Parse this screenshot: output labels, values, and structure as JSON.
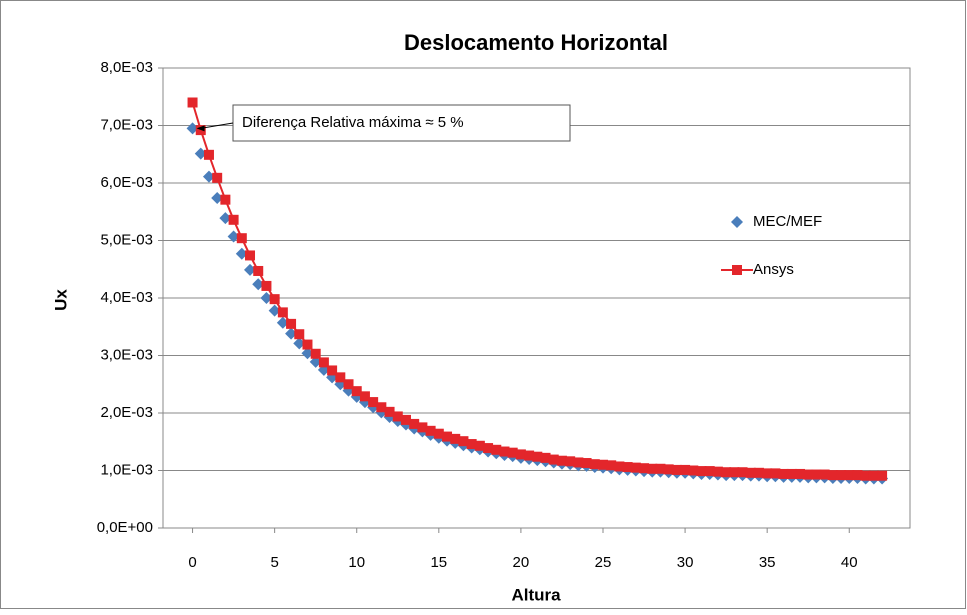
{
  "chart_data": {
    "type": "scatter",
    "title": "Deslocamento Horizontal",
    "x_label": "Altura",
    "y_label": "Ux",
    "annotation": "Diferença Relativa máxima ≈ 5 %",
    "x": [
      0,
      0.5,
      1,
      1.5,
      2,
      2.5,
      3,
      3.5,
      4,
      4.5,
      5,
      5.5,
      6,
      6.5,
      7,
      7.5,
      8,
      8.5,
      9,
      9.5,
      10,
      10.5,
      11,
      11.5,
      12,
      12.5,
      13,
      13.5,
      14,
      14.5,
      15,
      15.5,
      16,
      16.5,
      17,
      17.5,
      18,
      18.5,
      19,
      19.5,
      20,
      20.5,
      21,
      21.5,
      22,
      22.5,
      23,
      23.5,
      24,
      24.5,
      25,
      25.5,
      26,
      26.5,
      27,
      27.5,
      28,
      28.5,
      29,
      29.5,
      30,
      30.5,
      31,
      31.5,
      32,
      32.5,
      33,
      33.5,
      34,
      34.5,
      35,
      35.5,
      36,
      36.5,
      37,
      37.5,
      38,
      38.5,
      39,
      39.5,
      40,
      40.5,
      41,
      41.5,
      42
    ],
    "series": [
      {
        "name": "MEC/MEF",
        "color": "#4a7ebb",
        "marker": "diamond",
        "line": false,
        "values": [
          0.00695,
          0.00651,
          0.00611,
          0.00574,
          0.00539,
          0.00507,
          0.00477,
          0.00449,
          0.00424,
          0.004,
          0.00378,
          0.00357,
          0.00338,
          0.00321,
          0.00304,
          0.00289,
          0.00275,
          0.00262,
          0.0025,
          0.00239,
          0.00228,
          0.00219,
          0.0021,
          0.00201,
          0.00193,
          0.00186,
          0.0018,
          0.00173,
          0.00168,
          0.00162,
          0.00157,
          0.00152,
          0.00148,
          0.00144,
          0.0014,
          0.00137,
          0.00133,
          0.0013,
          0.00127,
          0.00125,
          0.00122,
          0.0012,
          0.00118,
          0.00116,
          0.00114,
          0.00112,
          0.00111,
          0.00109,
          0.00108,
          0.00106,
          0.00105,
          0.00104,
          0.00102,
          0.00101,
          0.001,
          0.00099,
          0.00098,
          0.00098,
          0.00097,
          0.00096,
          0.00096,
          0.00095,
          0.00094,
          0.00094,
          0.00093,
          0.00092,
          0.00092,
          0.00092,
          0.00091,
          0.00091,
          0.0009,
          0.0009,
          0.00089,
          0.00089,
          0.00089,
          0.00088,
          0.00088,
          0.00088,
          0.00087,
          0.00087,
          0.00087,
          0.00087,
          0.00086,
          0.00086,
          0.00086
        ]
      },
      {
        "name": "Ansys",
        "color": "#e3262b",
        "marker": "square",
        "line": true,
        "values": [
          0.0074,
          0.00692,
          0.00649,
          0.00609,
          0.00571,
          0.00536,
          0.00504,
          0.00474,
          0.00447,
          0.00421,
          0.00398,
          0.00375,
          0.00355,
          0.00337,
          0.00319,
          0.00303,
          0.00288,
          0.00274,
          0.00262,
          0.0025,
          0.00238,
          0.00229,
          0.00219,
          0.0021,
          0.00202,
          0.00194,
          0.00188,
          0.00181,
          0.00175,
          0.00169,
          0.00164,
          0.00159,
          0.00155,
          0.00151,
          0.00146,
          0.00143,
          0.00139,
          0.00136,
          0.00133,
          0.00131,
          0.00128,
          0.00126,
          0.00124,
          0.00122,
          0.00119,
          0.00117,
          0.00116,
          0.00114,
          0.00113,
          0.00111,
          0.0011,
          0.00109,
          0.00107,
          0.00106,
          0.00105,
          0.00104,
          0.00103,
          0.00103,
          0.00102,
          0.00101,
          0.00101,
          0.001,
          0.00099,
          0.00099,
          0.00098,
          0.00097,
          0.00097,
          0.00097,
          0.00096,
          0.00096,
          0.00095,
          0.00095,
          0.00094,
          0.00094,
          0.00094,
          0.00093,
          0.00093,
          0.00093,
          0.00092,
          0.00092,
          0.00092,
          0.00092,
          0.00091,
          0.00091,
          0.00091
        ]
      }
    ],
    "xlim": [
      -1.8,
      43.7
    ],
    "xticks": [
      0,
      5,
      10,
      15,
      20,
      25,
      30,
      35,
      40
    ],
    "ylim": [
      0,
      0.008
    ],
    "yticks": [
      {
        "value": 0,
        "label": "0,0E+00"
      },
      {
        "value": 0.001,
        "label": "1,0E-03"
      },
      {
        "value": 0.002,
        "label": "2,0E-03"
      },
      {
        "value": 0.003,
        "label": "3,0E-03"
      },
      {
        "value": 0.004,
        "label": "4,0E-03"
      },
      {
        "value": 0.005,
        "label": "5,0E-03"
      },
      {
        "value": 0.006,
        "label": "6,0E-03"
      },
      {
        "value": 0.007,
        "label": "7,0E-03"
      },
      {
        "value": 0.008,
        "label": "8,0E-03"
      }
    ],
    "grid": true,
    "legend": "right"
  }
}
